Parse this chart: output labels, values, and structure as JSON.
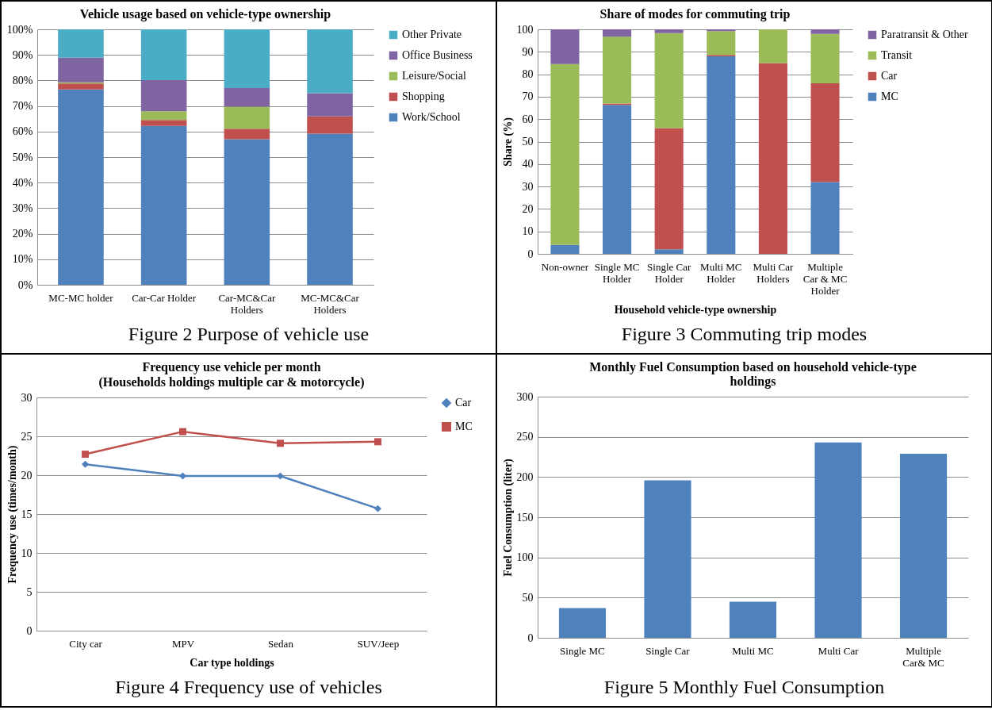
{
  "chart_data": [
    {
      "type": "bar",
      "stacked": true,
      "title": "Vehicle usage based on vehicle-type ownership",
      "categories": [
        "MC-MC holder",
        "Car-Car Holder",
        "Car-MC&Car Holders",
        "MC-MC&Car Holders"
      ],
      "series": [
        {
          "name": "Work/School",
          "color": "#4f81bd",
          "values": [
            76.5,
            62.2,
            57,
            59.2
          ]
        },
        {
          "name": "Shopping",
          "color": "#c0504d",
          "values": [
            2.3,
            2.3,
            4.1,
            6.7
          ]
        },
        {
          "name": "Leisure/Social",
          "color": "#9bbb59",
          "values": [
            0.5,
            3.4,
            8.6,
            0
          ]
        },
        {
          "name": "Office Business",
          "color": "#8064a2",
          "values": [
            9.6,
            12.2,
            7.3,
            9.1
          ]
        },
        {
          "name": "Other Private",
          "color": "#4bacc6",
          "values": [
            11.1,
            19.9,
            23,
            25
          ]
        }
      ],
      "ylim": [
        0,
        100
      ],
      "yticks": [
        {
          "value": 0,
          "label": "0%"
        },
        {
          "value": 10,
          "label": "10%"
        },
        {
          "value": 20,
          "label": "20%"
        },
        {
          "value": 30,
          "label": "30%"
        },
        {
          "value": 40,
          "label": "40%"
        },
        {
          "value": 50,
          "label": "50%"
        },
        {
          "value": 60,
          "label": "60%"
        },
        {
          "value": 70,
          "label": "70%"
        },
        {
          "value": 80,
          "label": "80%"
        },
        {
          "value": 90,
          "label": "90%"
        },
        {
          "value": 100,
          "label": "100%"
        }
      ],
      "grid": "y",
      "legend": "right",
      "annotations": [
        "Figure 2 Purpose of vehicle use"
      ]
    },
    {
      "type": "bar",
      "stacked": true,
      "title": "Share of modes for commuting trip",
      "xlabel": "Household vehicle-type ownership",
      "ylabel": "Share (%)",
      "categories": [
        "Non-owner",
        "Single MC Holder",
        "Single Car Holder",
        "Multi MC Holder",
        "Multi Car Holders",
        "Multiple Car & MC Holder"
      ],
      "series": [
        {
          "name": "MC",
          "color": "#4f81bd",
          "values": [
            4,
            66.3,
            2,
            88,
            0,
            32
          ]
        },
        {
          "name": "Car",
          "color": "#c0504d",
          "values": [
            0,
            0.7,
            54,
            0.6,
            85,
            44
          ]
        },
        {
          "name": "Transit",
          "color": "#9bbb59",
          "values": [
            80.5,
            29.7,
            42.3,
            10.6,
            15,
            22
          ]
        },
        {
          "name": "Paratransit & Other",
          "color": "#8064a2",
          "values": [
            15.5,
            3.3,
            1.7,
            0.8,
            0,
            2
          ]
        }
      ],
      "ylim": [
        0,
        100
      ],
      "yticks": [
        0,
        10,
        20,
        30,
        40,
        50,
        60,
        70,
        80,
        90,
        100
      ],
      "grid": "y",
      "legend": "right",
      "annotations": [
        "Figure 3 Commuting trip modes"
      ]
    },
    {
      "type": "line",
      "title": "Frequency use vehicle per month",
      "subtitle": "(Households holdings  multiple car & motorcycle)",
      "xlabel": "Car type holdings",
      "ylabel": "Frequency use (times/month)",
      "categories": [
        "City car",
        "MPV",
        "Sedan",
        "SUV/Jeep"
      ],
      "series": [
        {
          "name": "Car",
          "color": "#4f81bd",
          "marker": "diamond",
          "values": [
            21.4,
            19.9,
            19.9,
            15.7
          ]
        },
        {
          "name": "MC",
          "color": "#c0504d",
          "marker": "square",
          "values": [
            22.7,
            25.6,
            24.1,
            24.3
          ]
        }
      ],
      "ylim": [
        0,
        30
      ],
      "yticks": [
        0,
        5,
        10,
        15,
        20,
        25,
        30
      ],
      "grid": "y",
      "legend": "right",
      "line_style": "solid",
      "annotations": [
        "Figure 4 Frequency use of vehicles"
      ]
    },
    {
      "type": "bar",
      "title": "Monthly Fuel Consumption based on household vehicle-type holdings",
      "ylabel": "Fuel Consumption (liter)",
      "categories": [
        "Single MC",
        "Single Car",
        "Multi MC",
        "Multi Car",
        "Multiple Car& MC"
      ],
      "values": [
        37,
        196,
        45,
        243,
        229
      ],
      "color": "#4f81bd",
      "ylim": [
        0,
        300
      ],
      "yticks": [
        0,
        50,
        100,
        150,
        200,
        250,
        300
      ],
      "grid": "y",
      "annotations": [
        "Figure 5 Monthly Fuel Consumption"
      ]
    }
  ]
}
